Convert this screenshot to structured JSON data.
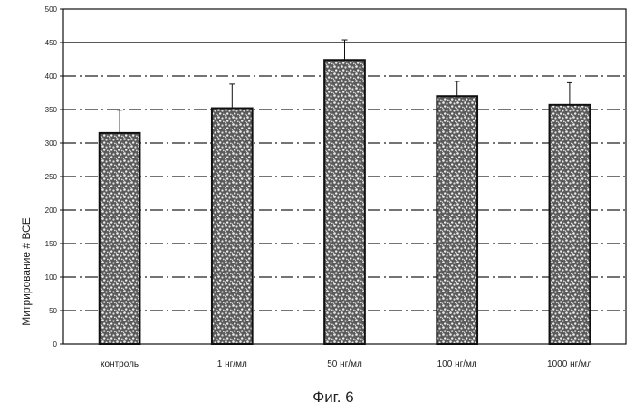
{
  "chart_data": {
    "type": "bar",
    "categories": [
      "контроль",
      "1 нг/мл",
      "50 нг/мл",
      "100 нг/мл",
      "1000 нг/мл"
    ],
    "values": [
      315,
      352,
      424,
      370,
      357
    ],
    "error_upper": [
      349,
      388,
      454,
      392,
      390
    ],
    "ylabel": "Митрирование # ВСЕ",
    "xlabel": "",
    "ylim": [
      0,
      500
    ],
    "yticks": [
      0,
      50,
      100,
      150,
      200,
      250,
      300,
      350,
      400,
      450,
      500
    ],
    "grid": true,
    "bar_fill": "speckled gray",
    "caption": "Фиг. 6"
  }
}
